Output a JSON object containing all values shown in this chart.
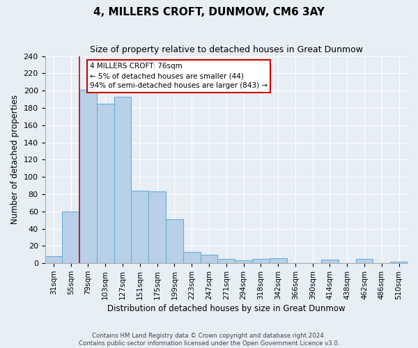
{
  "title": "4, MILLERS CROFT, DUNMOW, CM6 3AY",
  "subtitle": "Size of property relative to detached houses in Great Dunmow",
  "xlabel": "Distribution of detached houses by size in Great Dunmow",
  "ylabel": "Number of detached properties",
  "bar_labels": [
    "31sqm",
    "55sqm",
    "79sqm",
    "103sqm",
    "127sqm",
    "151sqm",
    "175sqm",
    "199sqm",
    "223sqm",
    "247sqm",
    "271sqm",
    "294sqm",
    "318sqm",
    "342sqm",
    "366sqm",
    "390sqm",
    "414sqm",
    "438sqm",
    "462sqm",
    "486sqm",
    "510sqm"
  ],
  "bar_values": [
    8,
    60,
    201,
    185,
    193,
    84,
    83,
    51,
    13,
    10,
    5,
    3,
    5,
    6,
    0,
    0,
    4,
    0,
    5,
    0,
    2
  ],
  "bar_color": "#b8d0e8",
  "bar_edge_color": "#6baed6",
  "vline_color": "#cc0000",
  "annotation_line1": "4 MILLERS CROFT: 76sqm",
  "annotation_line2": "← 5% of detached houses are smaller (44)",
  "annotation_line3": "94% of semi-detached houses are larger (843) →",
  "annotation_box_color": "#ffffff",
  "annotation_box_edge": "#cc0000",
  "ylim": [
    0,
    240
  ],
  "yticks": [
    0,
    20,
    40,
    60,
    80,
    100,
    120,
    140,
    160,
    180,
    200,
    220,
    240
  ],
  "footer1": "Contains HM Land Registry data © Crown copyright and database right 2024.",
  "footer2": "Contains public sector information licensed under the Open Government Licence v3.0.",
  "background_color": "#e8eef5",
  "plot_background": "#e8eef5",
  "title_fontsize": 11,
  "subtitle_fontsize": 9
}
